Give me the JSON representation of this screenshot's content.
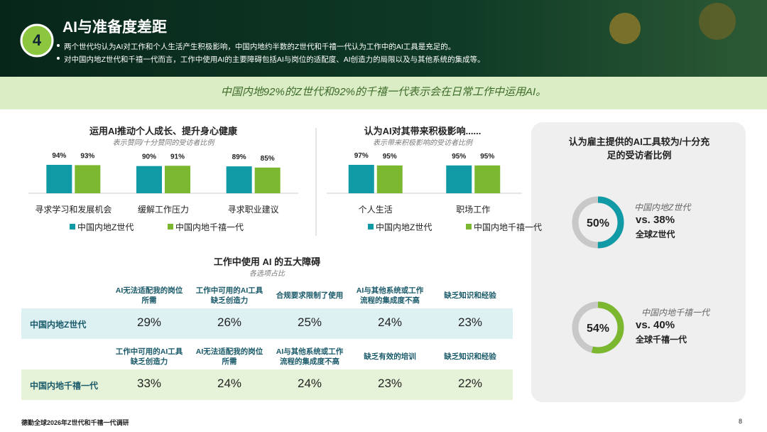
{
  "header": {
    "number": "4",
    "title": "AI与准备度差距",
    "bullets": [
      "两个世代均认为AI对工作和个人生活产生积极影响，中国内地约半数的Z世代和千禧一代认为工作中的AI工具是充足的。",
      "对中国内地Z世代和千禧一代而言，工作中使用AI的主要障碍包括AI与岗位的适配度、AI创造力的局限以及与其他系统的集成等。"
    ]
  },
  "banner": "中国内地92%的Z世代和92%的千禧一代表示会在日常工作中运用AI。",
  "chart_data": [
    {
      "type": "bar",
      "title": "运用AI推动个人成长、提升身心健康",
      "subtitle": "表示赞同/十分赞同的受访者比例",
      "categories": [
        "寻求学习和发展机会",
        "缓解工作压力",
        "寻求职业建议"
      ],
      "series": [
        {
          "name": "中国内地Z世代",
          "color": "#0f9aa6",
          "values": [
            94,
            90,
            89
          ],
          "value_labels": [
            "94%",
            "90%",
            "89%"
          ]
        },
        {
          "name": "中国内地千禧一代",
          "color": "#7cb82f",
          "values": [
            93,
            91,
            85
          ],
          "value_labels": [
            "93%",
            "91%",
            "85%"
          ]
        }
      ]
    },
    {
      "type": "bar",
      "title": "认为AI对其带来积极影响......",
      "subtitle": "表示带来积极影响的受访者比例",
      "categories": [
        "个人生活",
        "职场工作"
      ],
      "series": [
        {
          "name": "中国内地Z世代",
          "color": "#0f9aa6",
          "values": [
            97,
            95
          ],
          "value_labels": [
            "97%",
            "95%"
          ]
        },
        {
          "name": "中国内地千禧一代",
          "color": "#7cb82f",
          "values": [
            95,
            95
          ],
          "value_labels": [
            "95%",
            "95%"
          ]
        }
      ]
    },
    {
      "type": "donut",
      "title": "认为雇主提供的AI工具较为/十分充足的受访者比例",
      "items": [
        {
          "value": 50,
          "value_label": "50%",
          "color": "#0f9aa6",
          "group": "中国内地Z世代",
          "comparison": "vs. 38%",
          "comparison_group": "全球Z世代"
        },
        {
          "value": 54,
          "value_label": "54%",
          "color": "#7cb82f",
          "group": "中国内地千禧一代",
          "comparison": "vs. 40%",
          "comparison_group": "全球千禧一代"
        }
      ]
    }
  ],
  "table": {
    "title": "工作中使用 AI 的五大障碍",
    "subtitle": "各选项占比",
    "rows": [
      {
        "name": "中国内地Z世代",
        "headers": [
          "AI无法适配我的岗位所需",
          "工作中可用的AI工具缺乏创造力",
          "合规要求限制了使用",
          "AI与其他系统或工作流程的集成度不高",
          "缺乏知识和经验"
        ],
        "cells": [
          "29%",
          "26%",
          "25%",
          "24%",
          "23%"
        ]
      },
      {
        "name": "中国内地千禧一代",
        "headers": [
          "工作中可用的AI工具缺乏创造力",
          "AI无法适配我的岗位所需",
          "AI与其他系统或工作流程的集成度不高",
          "缺乏有效的培训",
          "缺乏知识和经验"
        ],
        "cells": [
          "33%",
          "24%",
          "24%",
          "23%",
          "22%"
        ]
      }
    ]
  },
  "footer": {
    "source": "德勤全球2026年Z世代和千禧一代调研",
    "page": "8"
  }
}
